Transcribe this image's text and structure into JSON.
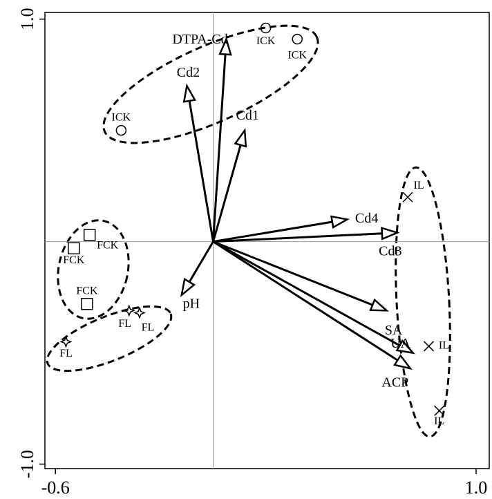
{
  "chart_data": {
    "type": "biplot",
    "xlim": [
      -0.64,
      1.05
    ],
    "ylim": [
      -1.02,
      1.03
    ],
    "xticks": [
      -0.6,
      {
        "value": 1,
        "label": "1.0"
      }
    ],
    "yticks": [
      {
        "value": -1,
        "label": "-1.0"
      },
      {
        "value": 1,
        "label": "1.0"
      }
    ],
    "vectors": {
      "labels": [
        "DTPA-Cd",
        "Cd2",
        "Cd1",
        "Cd4",
        "Cd3",
        "SA",
        "UA",
        "ACP",
        "pH"
      ],
      "x": [
        0.05,
        -0.1,
        0.12,
        0.51,
        0.7,
        0.66,
        0.76,
        0.75,
        -0.12
      ],
      "y": [
        0.91,
        0.7,
        0.5,
        0.1,
        0.04,
        -0.31,
        -0.5,
        -0.57,
        -0.24
      ]
    },
    "groups": [
      {
        "marker": "circle",
        "x": [
          0.2,
          0.32,
          -0.35
        ],
        "y": [
          0.96,
          0.91,
          0.5
        ],
        "labels": [
          "ICK",
          "ICK",
          "ICK"
        ]
      },
      {
        "marker": "square",
        "x": [
          -0.47,
          -0.53,
          -0.48
        ],
        "y": [
          0.03,
          -0.03,
          -0.28
        ],
        "labels": [
          "FCK",
          "FCK",
          "FCK"
        ]
      },
      {
        "marker": "star",
        "x": [
          -0.32,
          -0.28,
          -0.56
        ],
        "y": [
          -0.31,
          -0.32,
          -0.45
        ],
        "labels": [
          "FL",
          "FL",
          "FL"
        ]
      },
      {
        "marker": "cross",
        "x": [
          0.74,
          0.82,
          0.86
        ],
        "y": [
          0.2,
          -0.47,
          -0.76
        ],
        "labels": [
          "IL",
          "IL",
          "IL"
        ]
      }
    ]
  }
}
